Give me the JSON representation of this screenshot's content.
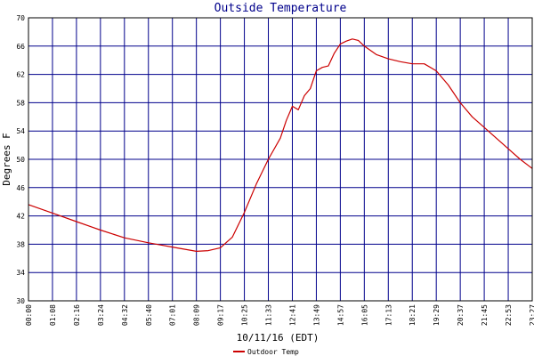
{
  "chart_data": {
    "type": "line",
    "title": "Outside Temperature",
    "xlabel": "10/11/16 (EDT)",
    "ylabel": "Degrees F",
    "ylim": [
      30,
      70
    ],
    "yticks": [
      30,
      34,
      38,
      42,
      46,
      50,
      54,
      58,
      62,
      66,
      70
    ],
    "xticks": [
      "00:00",
      "01:08",
      "02:16",
      "03:24",
      "04:32",
      "05:40",
      "07:01",
      "08:09",
      "09:17",
      "10:25",
      "11:33",
      "12:41",
      "13:49",
      "14:57",
      "16:05",
      "17:13",
      "18:21",
      "19:29",
      "20:37",
      "21:45",
      "22:53",
      "23:27"
    ],
    "grid": true,
    "legend": "bottom-left",
    "colors": {
      "line": "#cc0000",
      "grid": "#00008b",
      "title": "#00008b"
    },
    "series": [
      {
        "name": "Outdoor Temp",
        "x": [
          0,
          1,
          2,
          3,
          4,
          5,
          5.5,
          6,
          6.5,
          7,
          7.5,
          8,
          8.5,
          9,
          9.5,
          10,
          10.5,
          10.75,
          11,
          11.25,
          11.5,
          11.75,
          12,
          12.25,
          12.5,
          12.75,
          13,
          13.25,
          13.5,
          13.75,
          14,
          14.5,
          15,
          15.5,
          16,
          16.5,
          17,
          17.5,
          18,
          18.5,
          19,
          19.5,
          20,
          20.5,
          21
        ],
        "values": [
          43.6,
          42.4,
          41.2,
          40.0,
          38.9,
          38.2,
          37.9,
          37.6,
          37.3,
          37.0,
          37.1,
          37.5,
          39.0,
          42.5,
          46.5,
          50.0,
          53.0,
          55.5,
          57.5,
          57.0,
          59.0,
          60.0,
          62.5,
          63.0,
          63.2,
          65.0,
          66.3,
          66.7,
          67.0,
          66.8,
          66.0,
          64.8,
          64.2,
          63.8,
          63.5,
          63.5,
          62.5,
          60.5,
          58.0,
          56.0,
          54.5,
          53.0,
          51.5,
          50.0,
          48.7
        ]
      }
    ]
  }
}
